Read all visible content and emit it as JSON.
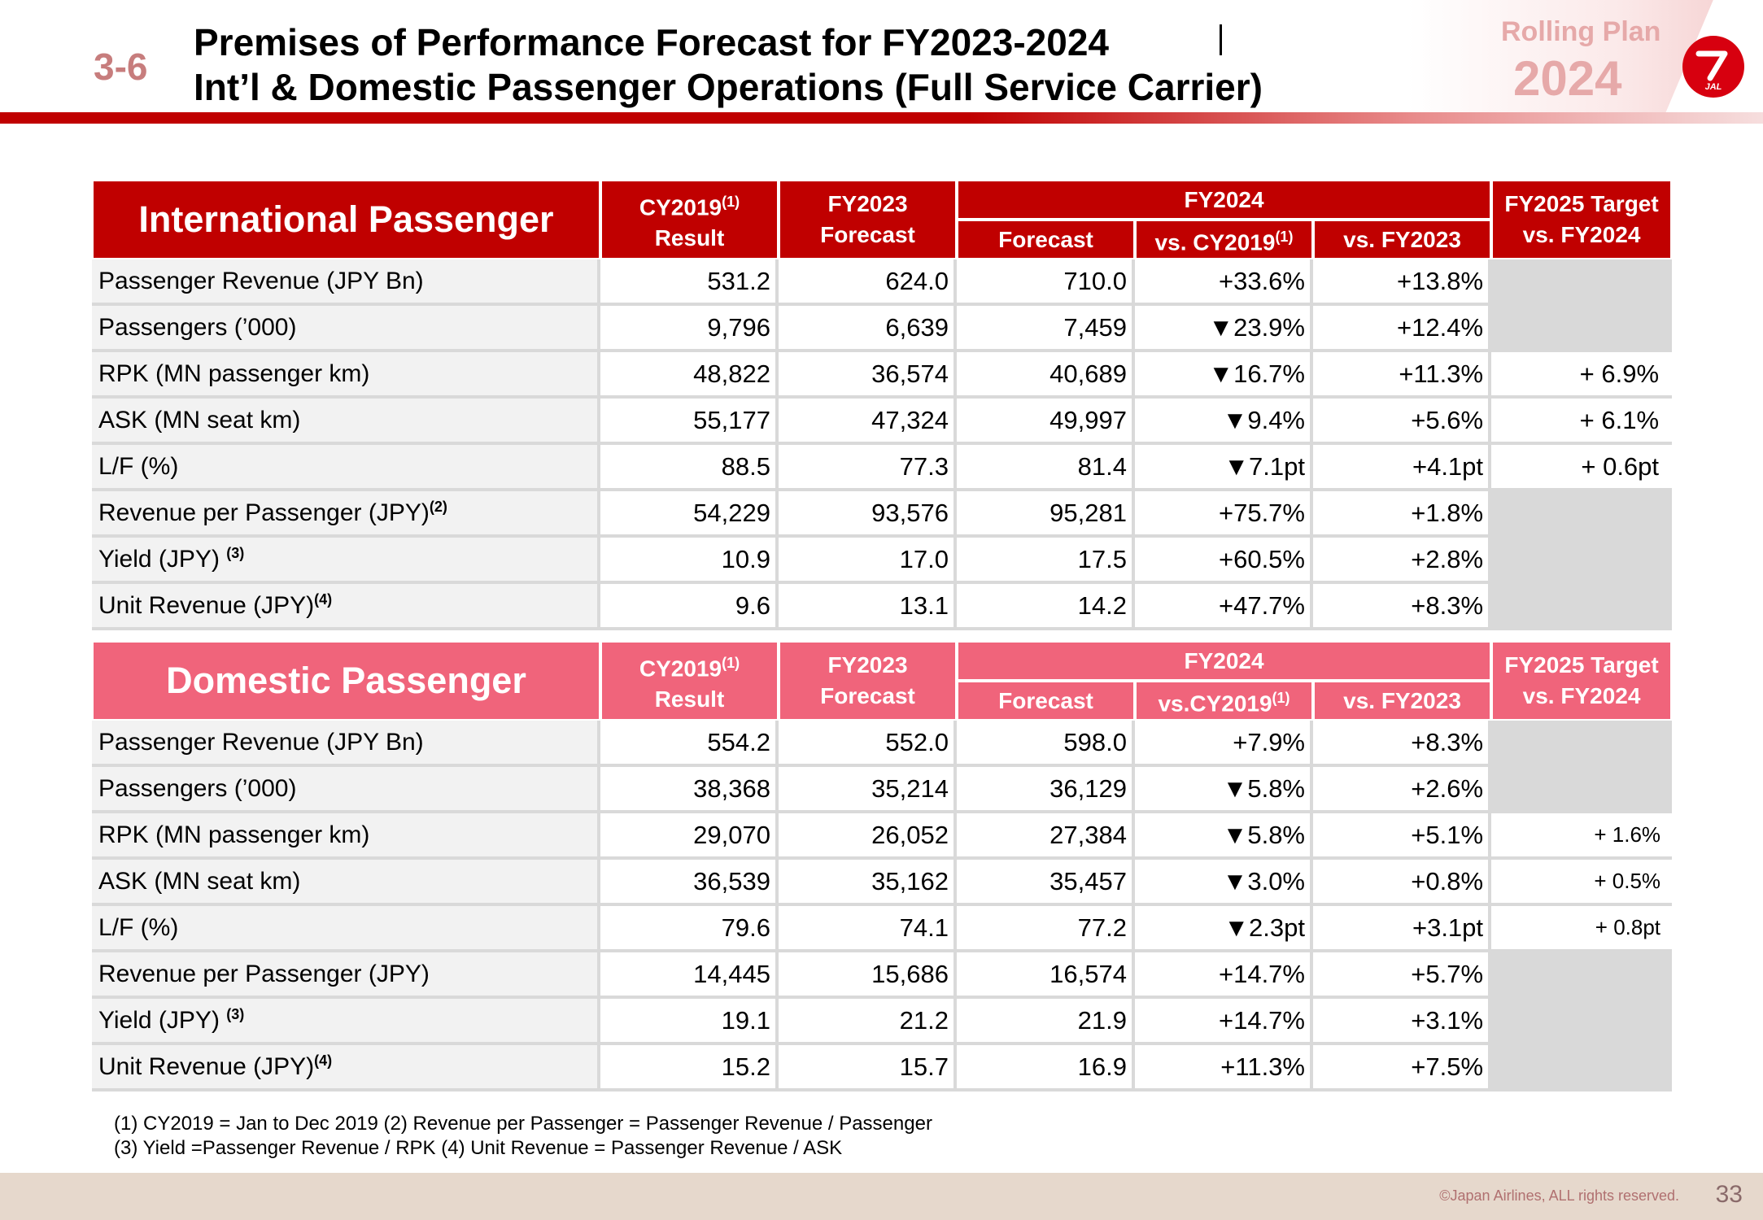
{
  "header": {
    "section_number": "3-6",
    "title_line1": "Premises of Performance Forecast for FY2023-2024",
    "title_line2": "Int’l & Domestic Passenger Operations (Full Service Carrier)",
    "rolling_plan_label": "Rolling Plan",
    "rolling_plan_year": "2024",
    "logo_text": "JAL"
  },
  "international": {
    "title": "International Passenger",
    "col_cy2019": "CY2019",
    "col_cy2019_sup": "(1)",
    "col_result": "Result",
    "col_fy2023": "FY2023",
    "col_forecast": "Forecast",
    "col_fy2024": "FY2024",
    "col_fy2024_forecast": "Forecast",
    "col_vs_cy2019": "vs. CY2019",
    "col_vs_cy2019_sup": "(1)",
    "col_vs_fy2023": "vs. FY2023",
    "col_target_line1": "FY2025 Target",
    "col_target_line2": "vs. FY2024",
    "rows": [
      {
        "label": "Passenger Revenue (JPY Bn)",
        "sup": "",
        "cy2019": "531.2",
        "fy2023": "624.0",
        "fy2024": "710.0",
        "vs_cy2019": "+33.6%",
        "vs_fy2023": "+13.8%",
        "target": ""
      },
      {
        "label": "Passengers (’000)",
        "sup": "",
        "cy2019": "9,796",
        "fy2023": "6,639",
        "fy2024": "7,459",
        "vs_cy2019": "▼23.9%",
        "vs_fy2023": "+12.4%",
        "target": ""
      },
      {
        "label": "RPK (MN passenger km)",
        "sup": "",
        "cy2019": "48,822",
        "fy2023": "36,574",
        "fy2024": "40,689",
        "vs_cy2019": "▼16.7%",
        "vs_fy2023": "+11.3%",
        "target": "+ 6.9%"
      },
      {
        "label": "ASK (MN seat km)",
        "sup": "",
        "cy2019": "55,177",
        "fy2023": "47,324",
        "fy2024": "49,997",
        "vs_cy2019": "▼9.4%",
        "vs_fy2023": "+5.6%",
        "target": "+ 6.1%"
      },
      {
        "label": "L/F (%)",
        "sup": "",
        "cy2019": "88.5",
        "fy2023": "77.3",
        "fy2024": "81.4",
        "vs_cy2019": "▼7.1pt",
        "vs_fy2023": "+4.1pt",
        "target": "+ 0.6pt"
      },
      {
        "label": "Revenue per Passenger (JPY)",
        "sup": "(2)",
        "cy2019": "54,229",
        "fy2023": "93,576",
        "fy2024": "95,281",
        "vs_cy2019": "+75.7%",
        "vs_fy2023": "+1.8%",
        "target": ""
      },
      {
        "label": "Yield (JPY) ",
        "sup": "(3)",
        "cy2019": "10.9",
        "fy2023": "17.0",
        "fy2024": "17.5",
        "vs_cy2019": "+60.5%",
        "vs_fy2023": "+2.8%",
        "target": ""
      },
      {
        "label": "Unit Revenue (JPY)",
        "sup": "(4)",
        "cy2019": "9.6",
        "fy2023": "13.1",
        "fy2024": "14.2",
        "vs_cy2019": "+47.7%",
        "vs_fy2023": "+8.3%",
        "target": ""
      }
    ]
  },
  "domestic": {
    "title": "Domestic Passenger",
    "col_cy2019": "CY2019",
    "col_cy2019_sup": "(1)",
    "col_result": "Result",
    "col_fy2023": "FY2023",
    "col_forecast": "Forecast",
    "col_fy2024": "FY2024",
    "col_fy2024_forecast": "Forecast",
    "col_vs_cy2019": "vs.CY2019",
    "col_vs_cy2019_sup": "(1)",
    "col_vs_fy2023": "vs. FY2023",
    "col_target_line1": "FY2025 Target",
    "col_target_line2": "vs. FY2024",
    "rows": [
      {
        "label": "Passenger Revenue (JPY Bn)",
        "sup": "",
        "cy2019": "554.2",
        "fy2023": "552.0",
        "fy2024": "598.0",
        "vs_cy2019": "+7.9%",
        "vs_fy2023": "+8.3%",
        "target": ""
      },
      {
        "label": "Passengers (’000)",
        "sup": "",
        "cy2019": "38,368",
        "fy2023": "35,214",
        "fy2024": "36,129",
        "vs_cy2019": "▼5.8%",
        "vs_fy2023": "+2.6%",
        "target": ""
      },
      {
        "label": "RPK (MN passenger km)",
        "sup": "",
        "cy2019": "29,070",
        "fy2023": "26,052",
        "fy2024": "27,384",
        "vs_cy2019": "▼5.8%",
        "vs_fy2023": "+5.1%",
        "target": "+ 1.6%"
      },
      {
        "label": "ASK (MN seat km)",
        "sup": "",
        "cy2019": "36,539",
        "fy2023": "35,162",
        "fy2024": "35,457",
        "vs_cy2019": "▼3.0%",
        "vs_fy2023": "+0.8%",
        "target": "+ 0.5%"
      },
      {
        "label": "L/F (%)",
        "sup": "",
        "cy2019": "79.6",
        "fy2023": "74.1",
        "fy2024": "77.2",
        "vs_cy2019": "▼2.3pt",
        "vs_fy2023": "+3.1pt",
        "target": "+ 0.8pt"
      },
      {
        "label": "Revenue per Passenger (JPY)",
        "sup": "",
        "cy2019": "14,445",
        "fy2023": "15,686",
        "fy2024": "16,574",
        "vs_cy2019": "+14.7%",
        "vs_fy2023": "+5.7%",
        "target": ""
      },
      {
        "label": "Yield (JPY) ",
        "sup": "(3)",
        "cy2019": "19.1",
        "fy2023": "21.2",
        "fy2024": "21.9",
        "vs_cy2019": "+14.7%",
        "vs_fy2023": "+3.1%",
        "target": ""
      },
      {
        "label": "Unit Revenue (JPY)",
        "sup": "(4)",
        "cy2019": "15.2",
        "fy2023": "15.7",
        "fy2024": "16.9",
        "vs_cy2019": "+11.3%",
        "vs_fy2023": "+7.5%",
        "target": ""
      }
    ]
  },
  "footnotes": {
    "line1": "(1) CY2019 = Jan to Dec 2019  (2) Revenue per Passenger = Passenger Revenue / Passenger",
    "line2": "(3) Yield =Passenger Revenue / RPK  (4) Unit Revenue = Passenger Revenue / ASK"
  },
  "footer": {
    "copyright": "©Japan Airlines, ALL rights reserved.",
    "page_number": "33"
  },
  "colors": {
    "international_header": "#c00000",
    "domestic_header": "#f0647b",
    "accent_red": "#d7000f"
  }
}
